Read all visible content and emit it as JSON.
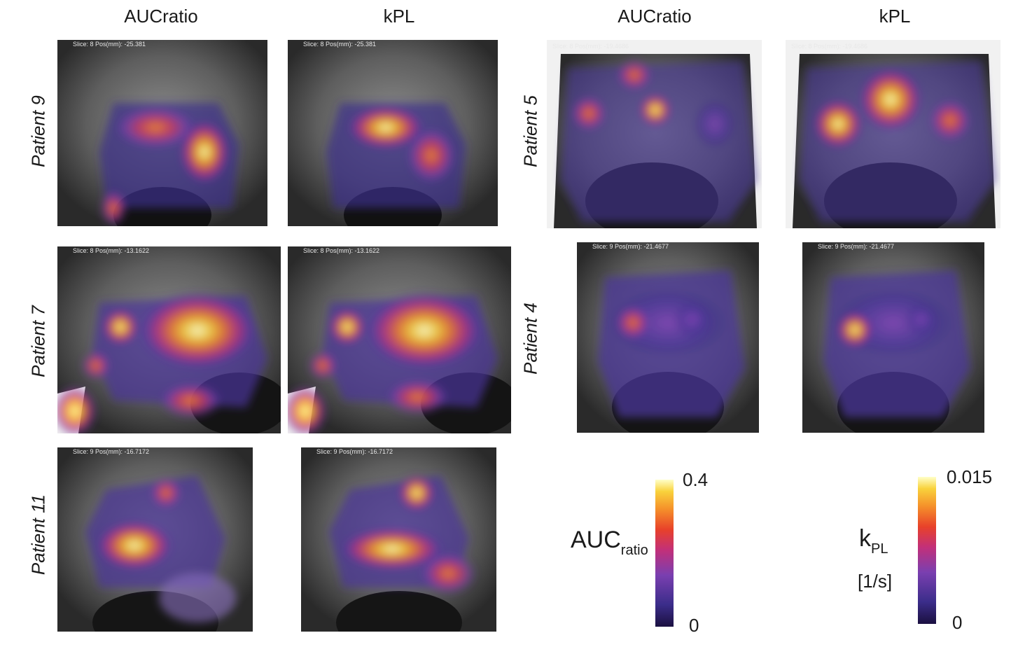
{
  "column_headers": [
    "AUCratio",
    "kPL",
    "AUCratio",
    "kPL"
  ],
  "patients": [
    {
      "id": "p9",
      "label": "Patient 9",
      "slice_text": "Slice: 8 Pos(mm): -25.381"
    },
    {
      "id": "p7",
      "label": "Patient 7",
      "slice_text": "Slice: 8 Pos(mm): -13.1622"
    },
    {
      "id": "p11",
      "label": "Patient 11",
      "slice_text": "Slice: 9 Pos(mm): -16.7172"
    },
    {
      "id": "p5",
      "label": "Patient 5",
      "slice_text": "Slice: 8 Pos(mm): -19.4686"
    },
    {
      "id": "p4",
      "label": "Patient 4",
      "slice_text": "Slice: 9 Pos(mm): -21.4677"
    }
  ],
  "colorbars": {
    "auc": {
      "name_main": "AUC",
      "name_sub": "ratio",
      "max_label": "0.4",
      "min_label": "0"
    },
    "kpl": {
      "name_main": "k",
      "name_sub": "PL",
      "unit": "[1/s]",
      "max_label": "0.015",
      "min_label": "0"
    }
  },
  "colors": {
    "colormap": [
      "#1b1040",
      "#3b2d8a",
      "#7a3fb0",
      "#c2307a",
      "#e8412a",
      "#f5902a",
      "#f9d23c",
      "#ffffc8"
    ]
  }
}
